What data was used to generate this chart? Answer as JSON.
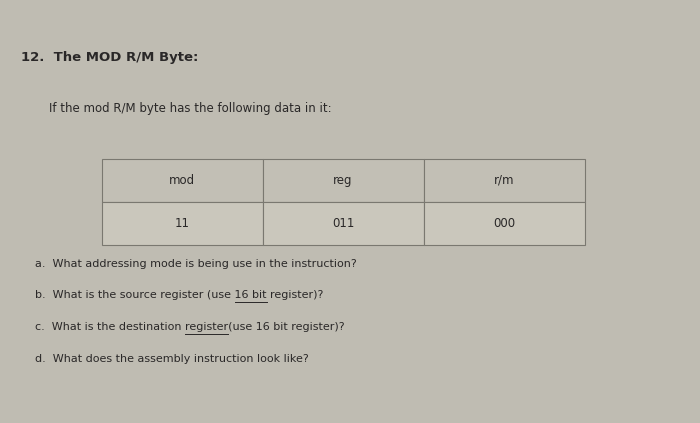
{
  "title": "12.  The MOD R/M Byte:",
  "subtitle": "If the mod R/M byte has the following data in it:",
  "table_headers": [
    "mod",
    "reg",
    "r/m"
  ],
  "table_values": [
    "11",
    "011",
    "000"
  ],
  "questions": [
    "a.  What addressing mode is being use in the instruction?",
    "b.  What is the source register (use 16 bit register)?",
    "c.  What is the destination register(use 16 bit register)?",
    "d.  What does the assembly instruction look like?"
  ],
  "q_b_prefix": "b.  What is the source register (use ",
  "q_b_underline": "16 bit",
  "q_c_prefix": "c.  What is the destination ",
  "q_c_underline": "register",
  "background_color": "#bfbcb2",
  "table_header_bg": "#c2bfb5",
  "table_value_bg": "#cac7bc",
  "text_color": "#2a2828",
  "border_color": "#7a7870",
  "title_fontsize": 9.5,
  "subtitle_fontsize": 8.5,
  "question_fontsize": 8.0,
  "table_fontsize": 8.5
}
